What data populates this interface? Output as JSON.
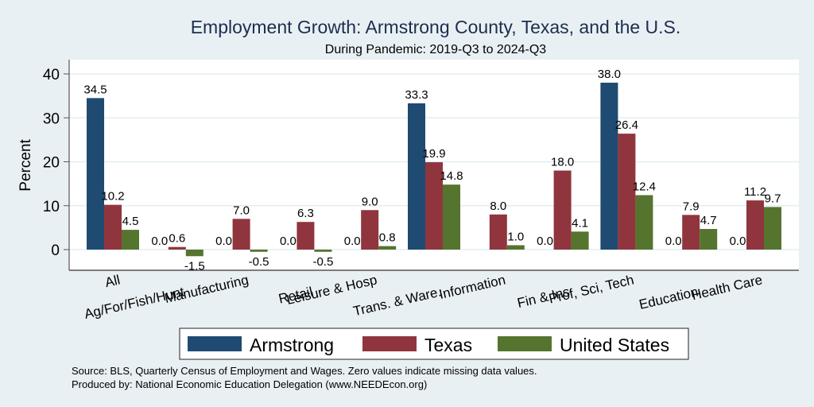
{
  "chart_data": {
    "type": "bar",
    "title": "Employment Growth: Armstrong County, Texas, and the U.S.",
    "subtitle": "During Pandemic: 2019-Q3 to 2024-Q3",
    "xlabel": "",
    "ylabel": "Percent",
    "ylim": [
      -4.6,
      43.3
    ],
    "yticks": [
      0,
      10,
      20,
      30,
      40
    ],
    "grid": true,
    "legend_position": "bottom",
    "categories": [
      "All",
      "Ag/For/Fish/Hunt",
      "Manufacturing",
      "Retail",
      "Leisure & Hosp",
      "Trans. & Ware.",
      "Information",
      "Fin & Ins",
      "Prof, Sci, Tech",
      "Education",
      "Health Care"
    ],
    "series": [
      {
        "name": "Armstrong",
        "color": "#1f4a72",
        "values": [
          34.5,
          0.0,
          0.0,
          0.0,
          0.0,
          33.3,
          null,
          0.0,
          38.0,
          0.0,
          0.0
        ]
      },
      {
        "name": "Texas",
        "color": "#90353d",
        "values": [
          10.2,
          0.6,
          7.0,
          6.3,
          9.0,
          19.9,
          8.0,
          18.0,
          26.4,
          7.9,
          11.2
        ]
      },
      {
        "name": "United States",
        "color": "#55742e",
        "values": [
          4.5,
          -1.5,
          -0.5,
          -0.5,
          0.8,
          14.8,
          1.0,
          4.1,
          12.4,
          4.7,
          9.7
        ]
      }
    ],
    "notes": [
      "Source: BLS, Quarterly Census of Employment and Wages. Zero values indicate missing data values.",
      "Produced by: National Economic Education Delegation (www.NEEDEcon.org)"
    ]
  }
}
